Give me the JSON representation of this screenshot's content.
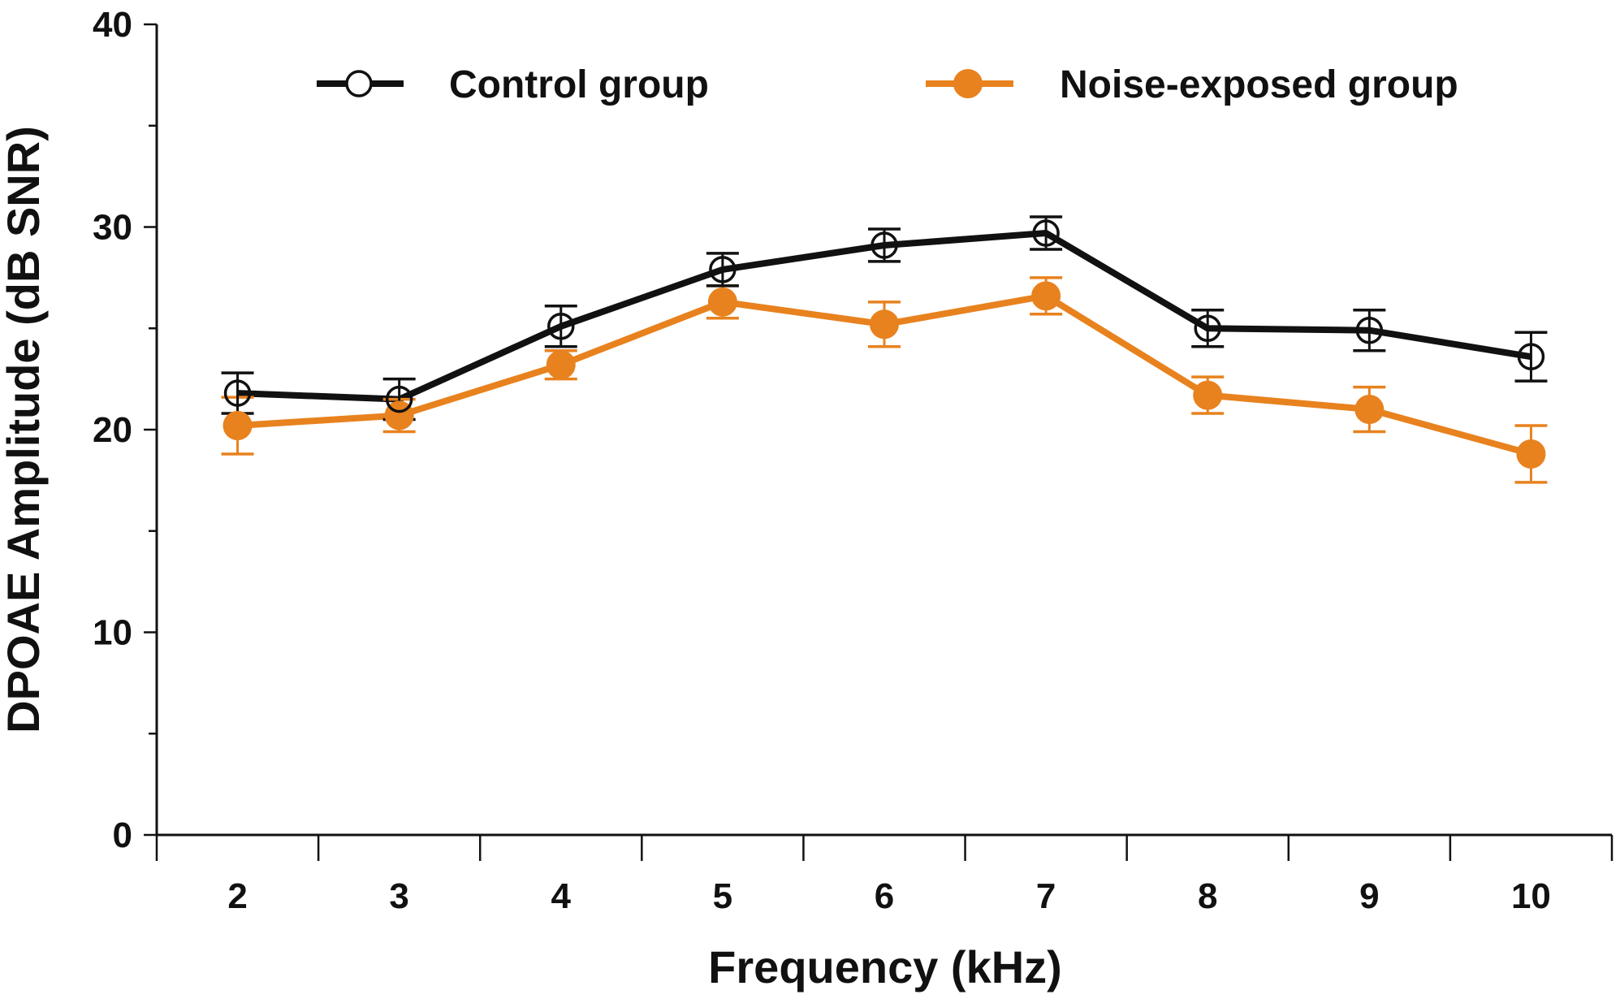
{
  "chart_data": {
    "type": "line",
    "title": "",
    "xlabel": "Frequency (kHz)",
    "ylabel": "DPOAE Amplitude (dB SNR)",
    "x": [
      2,
      3,
      4,
      5,
      6,
      7,
      8,
      9,
      10
    ],
    "x_tick_labels": [
      "2",
      "3",
      "4",
      "5",
      "6",
      "7",
      "8",
      "9",
      "10"
    ],
    "ylim": [
      0,
      40
    ],
    "y_ticks": [
      0,
      10,
      20,
      30,
      40
    ],
    "y_tick_labels": [
      "0",
      "10",
      "20",
      "30",
      "40"
    ],
    "y_minor_step": 5,
    "grid": false,
    "legend_position": "top",
    "series": [
      {
        "name": "Control group",
        "color": "#111111",
        "marker": "open-circle",
        "values": [
          21.8,
          21.5,
          25.1,
          27.9,
          29.1,
          29.7,
          25.0,
          24.9,
          23.6
        ],
        "errors": [
          1.0,
          1.0,
          1.0,
          0.8,
          0.8,
          0.8,
          0.9,
          1.0,
          1.2
        ]
      },
      {
        "name": "Noise-exposed group",
        "color": "#E8821E",
        "marker": "filled-circle",
        "values": [
          20.2,
          20.7,
          23.2,
          26.3,
          25.2,
          26.6,
          21.7,
          21.0,
          18.8
        ],
        "errors": [
          1.4,
          0.8,
          0.7,
          0.8,
          1.1,
          0.9,
          0.9,
          1.1,
          1.4
        ]
      }
    ]
  }
}
